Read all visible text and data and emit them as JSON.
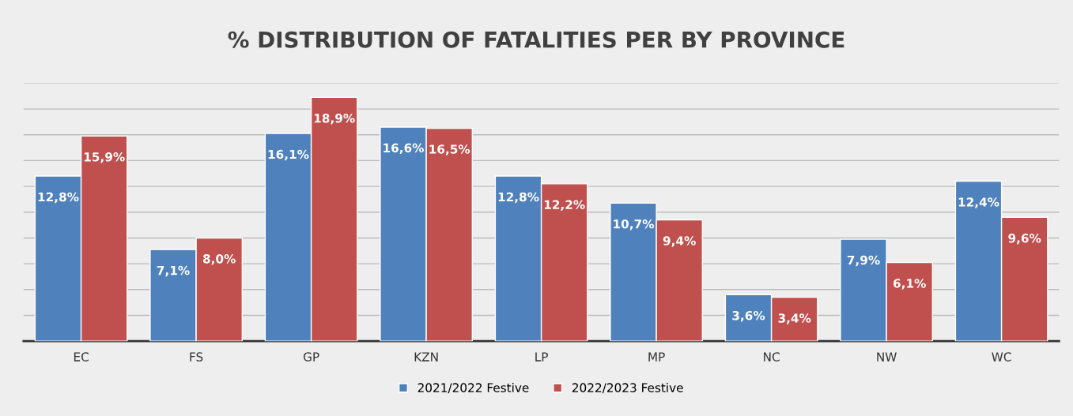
{
  "chart_data": {
    "type": "bar",
    "title": "% DISTRIBUTION OF FATALITIES PER BY PROVINCE",
    "categories": [
      "EC",
      "FS",
      "GP",
      "KZN",
      "LP",
      "MP",
      "NC",
      "NW",
      "WC"
    ],
    "series": [
      {
        "name": "2021/2022 Festive",
        "color": "#4f81bd",
        "values": [
          12.8,
          7.1,
          16.1,
          16.6,
          12.8,
          10.7,
          3.6,
          7.9,
          12.4
        ],
        "value_labels": [
          "12,8%",
          "7,1%",
          "16,1%",
          "16,6%",
          "12,8%",
          "10,7%",
          "3,6%",
          "7,9%",
          "12,4%"
        ]
      },
      {
        "name": "2022/2023 Festive",
        "color": "#c0504d",
        "values": [
          15.9,
          8.0,
          18.9,
          16.5,
          12.2,
          9.4,
          3.4,
          6.1,
          9.6
        ],
        "value_labels": [
          "15,9%",
          "8,0%",
          "18,9%",
          "16,5%",
          "12,2%",
          "9,4%",
          "3,4%",
          "6,1%",
          "9,6%"
        ]
      }
    ],
    "ylim": [
      0,
      20
    ],
    "yticks": [
      {
        "value": 0,
        "label": null
      },
      {
        "value": 2,
        "label": null
      },
      {
        "value": 4,
        "label": null
      },
      {
        "value": 6,
        "label": null
      },
      {
        "value": 8,
        "label": null
      },
      {
        "value": 10,
        "label": null
      },
      {
        "value": 12,
        "label": null
      },
      {
        "value": 14,
        "label": null
      },
      {
        "value": 16,
        "label": null
      },
      {
        "value": 18,
        "label": null
      },
      {
        "value": 20,
        "label": null
      }
    ],
    "tick_labels": "x",
    "grid": "y",
    "legend": "bottom"
  }
}
